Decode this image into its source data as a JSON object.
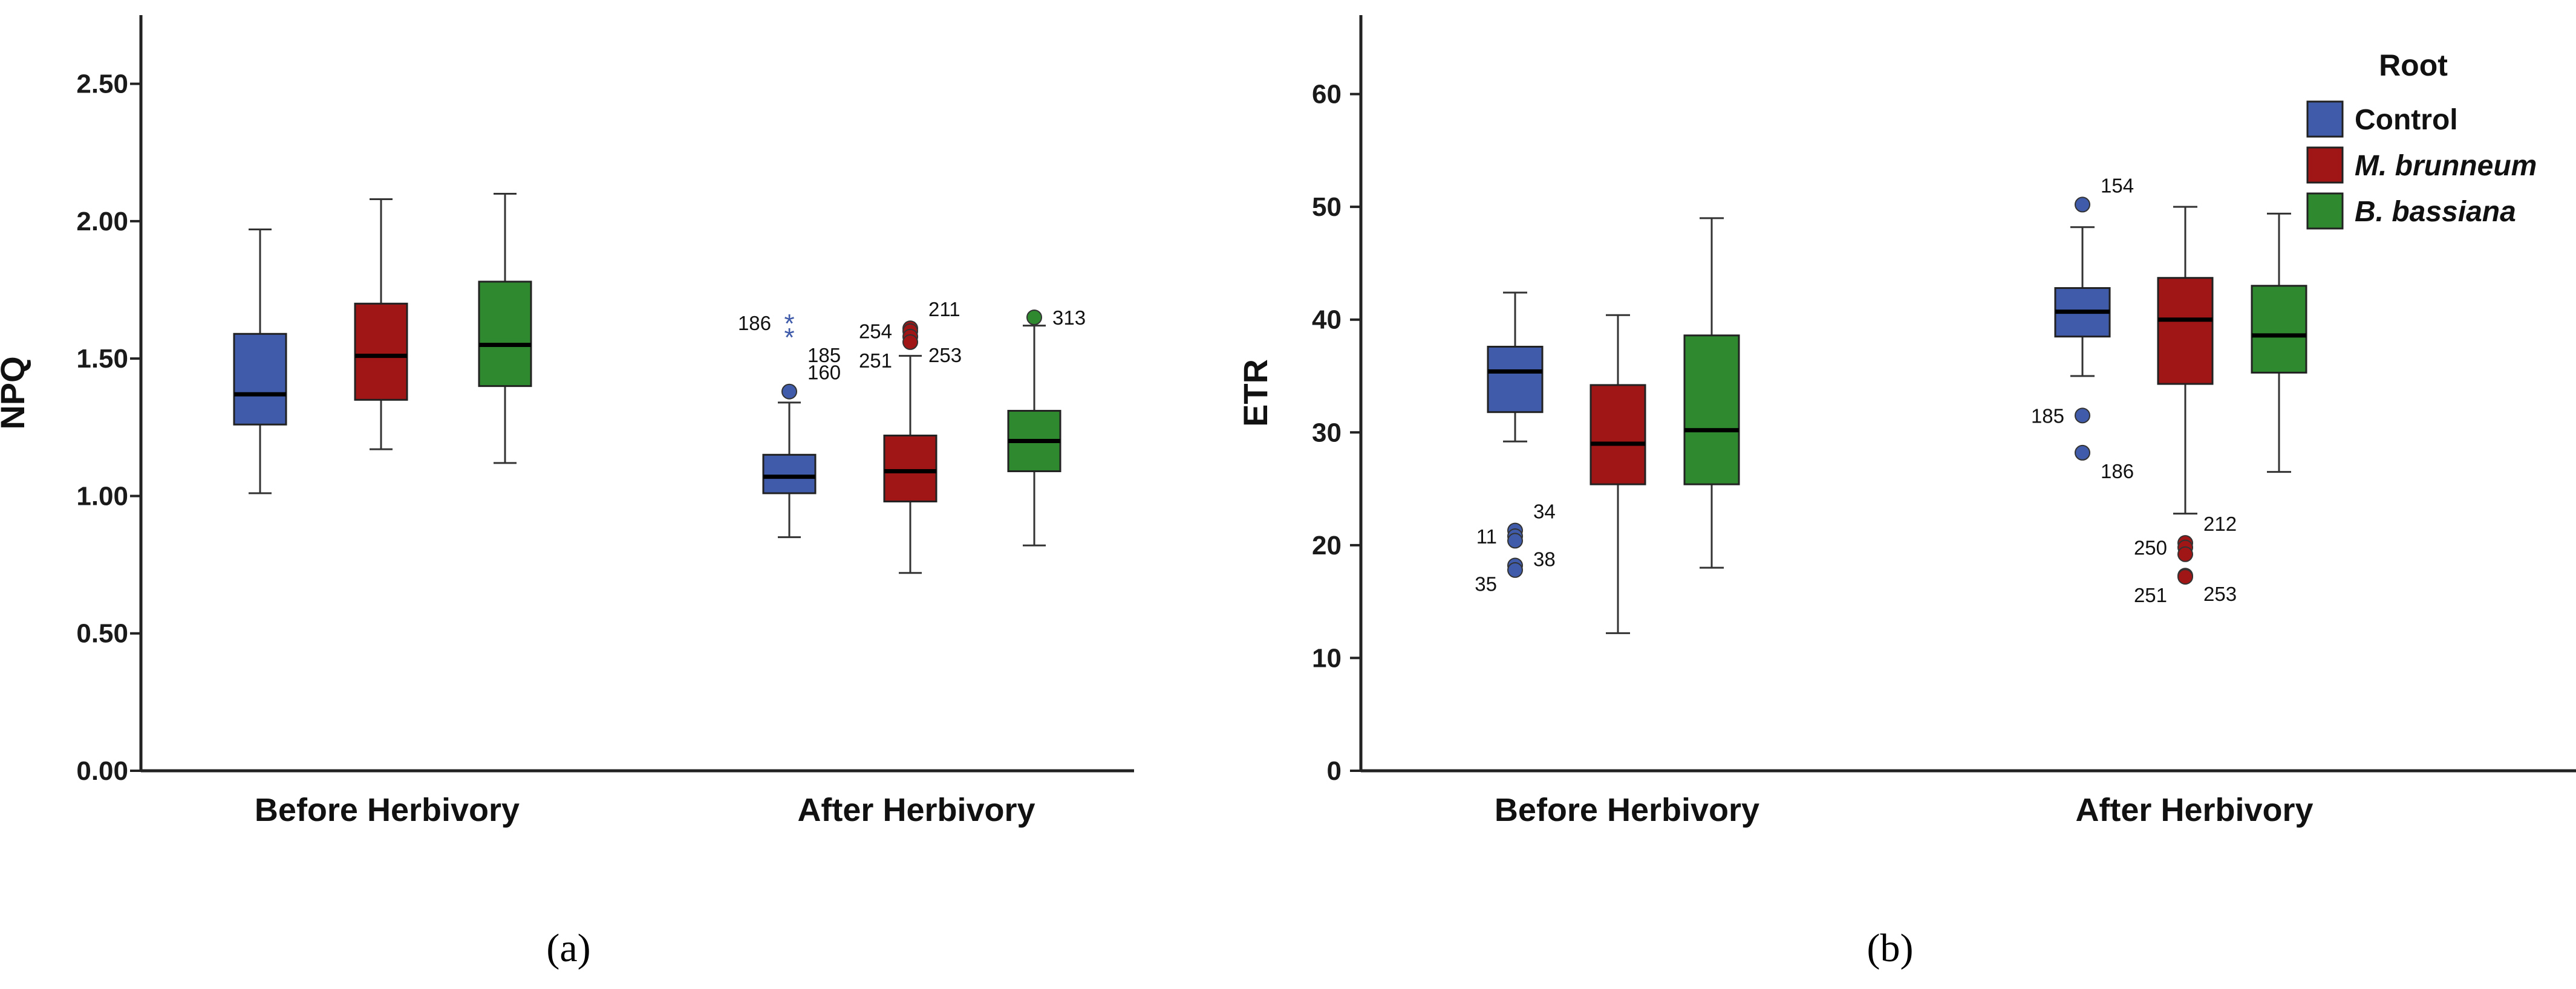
{
  "chart_data": [
    {
      "id": "a",
      "type": "box",
      "title": "",
      "subcaption": "(a)",
      "xlabel": "",
      "ylabel": "NPQ",
      "ylim": [
        0,
        2.75
      ],
      "yticks": [
        0.0,
        0.5,
        1.0,
        1.5,
        2.0,
        2.5
      ],
      "ytick_labels": [
        "0.00",
        "0.50",
        "1.00",
        "1.50",
        "2.00",
        "2.50"
      ],
      "categories": [
        "Before Herbivory",
        "After Herbivory"
      ],
      "series": [
        {
          "name": "Control",
          "color": "#3f5ba9",
          "boxes": [
            {
              "min": 1.01,
              "q1": 1.26,
              "median": 1.37,
              "q3": 1.59,
              "max": 1.97,
              "outliers": []
            },
            {
              "min": 0.85,
              "q1": 1.01,
              "median": 1.07,
              "q3": 1.15,
              "max": 1.34,
              "outliers": [
                {
                  "value": 1.38,
                  "label": "160",
                  "marker": "circle"
                },
                {
                  "value": 1.63,
                  "label": "186",
                  "marker": "star"
                },
                {
                  "value": 1.58,
                  "label": "185",
                  "marker": "star"
                }
              ]
            }
          ]
        },
        {
          "name": "M. brunneum",
          "color": "#a01515",
          "boxes": [
            {
              "min": 1.17,
              "q1": 1.35,
              "median": 1.51,
              "q3": 1.7,
              "max": 2.08,
              "outliers": []
            },
            {
              "min": 0.72,
              "q1": 0.98,
              "median": 1.09,
              "q3": 1.22,
              "max": 1.51,
              "outliers": [
                {
                  "value": 1.61,
                  "label": "211",
                  "marker": "circle"
                },
                {
                  "value": 1.6,
                  "label": "254",
                  "marker": "circle"
                },
                {
                  "value": 1.58,
                  "label": "253",
                  "marker": "circle"
                },
                {
                  "value": 1.56,
                  "label": "251",
                  "marker": "circle"
                }
              ]
            }
          ]
        },
        {
          "name": "B. bassiana",
          "color": "#2f8a2f",
          "boxes": [
            {
              "min": 1.12,
              "q1": 1.4,
              "median": 1.55,
              "q3": 1.78,
              "max": 2.1,
              "outliers": []
            },
            {
              "min": 0.82,
              "q1": 1.09,
              "median": 1.2,
              "q3": 1.31,
              "max": 1.62,
              "outliers": [
                {
                  "value": 1.65,
                  "label": "313",
                  "marker": "circle"
                }
              ]
            }
          ]
        }
      ]
    },
    {
      "id": "b",
      "type": "box",
      "title": "",
      "subcaption": "(b)",
      "xlabel": "",
      "ylabel": "ETR",
      "ylim": [
        0,
        67
      ],
      "yticks": [
        0,
        10,
        20,
        30,
        40,
        50,
        60
      ],
      "ytick_labels": [
        "0",
        "10",
        "20",
        "30",
        "40",
        "50",
        "60"
      ],
      "categories": [
        "Before Herbivory",
        "After Herbivory"
      ],
      "legend": {
        "title": "Root",
        "position": "top-right",
        "items": [
          "Control",
          "M. brunneum",
          "B. bassiana"
        ],
        "italic": [
          false,
          true,
          true
        ]
      },
      "series": [
        {
          "name": "Control",
          "color": "#3f5ba9",
          "boxes": [
            {
              "min": 29.2,
              "q1": 31.8,
              "median": 35.4,
              "q3": 37.6,
              "max": 42.4,
              "outliers": [
                {
                  "value": 21.3,
                  "label": "34",
                  "marker": "circle"
                },
                {
                  "value": 20.8,
                  "label": "11",
                  "marker": "circle"
                },
                {
                  "value": 20.4,
                  "label": "38",
                  "marker": "circle"
                },
                {
                  "value": 18.2,
                  "label": "35",
                  "marker": "circle"
                },
                {
                  "value": 17.8,
                  "label": "",
                  "marker": "circle"
                }
              ]
            },
            {
              "min": 35.0,
              "q1": 38.5,
              "median": 40.7,
              "q3": 42.8,
              "max": 48.2,
              "outliers": [
                {
                  "value": 50.2,
                  "label": "154",
                  "marker": "circle"
                },
                {
                  "value": 31.5,
                  "label": "185",
                  "marker": "circle"
                },
                {
                  "value": 28.2,
                  "label": "186",
                  "marker": "circle"
                }
              ]
            }
          ]
        },
        {
          "name": "M. brunneum",
          "color": "#a01515",
          "boxes": [
            {
              "min": 12.2,
              "q1": 25.4,
              "median": 29.0,
              "q3": 34.2,
              "max": 40.4,
              "outliers": []
            },
            {
              "min": 22.8,
              "q1": 34.3,
              "median": 40.0,
              "q3": 43.7,
              "max": 50.0,
              "outliers": [
                {
                  "value": 20.2,
                  "label": "212",
                  "marker": "circle"
                },
                {
                  "value": 19.8,
                  "label": "250",
                  "marker": "circle"
                },
                {
                  "value": 19.2,
                  "label": "",
                  "marker": "circle"
                },
                {
                  "value": 17.3,
                  "label": "253",
                  "marker": "circle"
                },
                {
                  "value": 17.2,
                  "label": "251",
                  "marker": "circle"
                }
              ]
            }
          ]
        },
        {
          "name": "B. bassiana",
          "color": "#2f8a2f",
          "boxes": [
            {
              "min": 18.0,
              "q1": 25.4,
              "median": 30.2,
              "q3": 38.6,
              "max": 49.0,
              "outliers": []
            },
            {
              "min": 26.5,
              "q1": 35.3,
              "median": 38.6,
              "q3": 43.0,
              "max": 49.4,
              "outliers": []
            }
          ]
        }
      ]
    }
  ]
}
